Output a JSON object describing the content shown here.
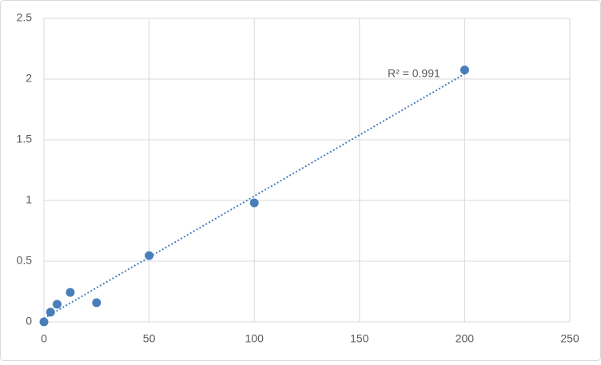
{
  "chart_data": {
    "type": "scatter",
    "annotation": "R² = 0.991",
    "series": [
      {
        "name": null,
        "color": "#4a7ebb",
        "x": [
          0,
          3.125,
          6.25,
          12.5,
          25,
          50,
          100,
          200
        ],
        "values": [
          0,
          0.08,
          0.145,
          0.243,
          0.158,
          0.546,
          0.98,
          2.075
        ]
      }
    ],
    "trendline": "linear",
    "xlim": [
      0,
      250
    ],
    "xticks": [
      0,
      50,
      100,
      150,
      200,
      250
    ],
    "ylim": [
      0,
      2.5
    ],
    "yticks": [
      0,
      0.5,
      1,
      1.5,
      2,
      2.5
    ],
    "grid": true
  }
}
